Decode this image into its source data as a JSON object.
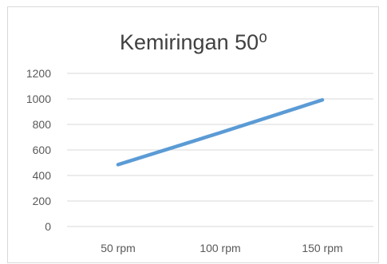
{
  "chart_data": {
    "type": "line",
    "title": "Kemiringan 50⁰",
    "categories": [
      "50 rpm",
      "100 rpm",
      "150 rpm"
    ],
    "series": [
      {
        "values": [
          485,
          735,
          992
        ]
      }
    ],
    "ylim": [
      0,
      1200
    ],
    "yticks": [
      0,
      200,
      400,
      600,
      800,
      1000,
      1200
    ],
    "grid": true,
    "line_color": "#5b9bd5",
    "grid_color": "#d9d9d9",
    "text_color": "#595959"
  }
}
